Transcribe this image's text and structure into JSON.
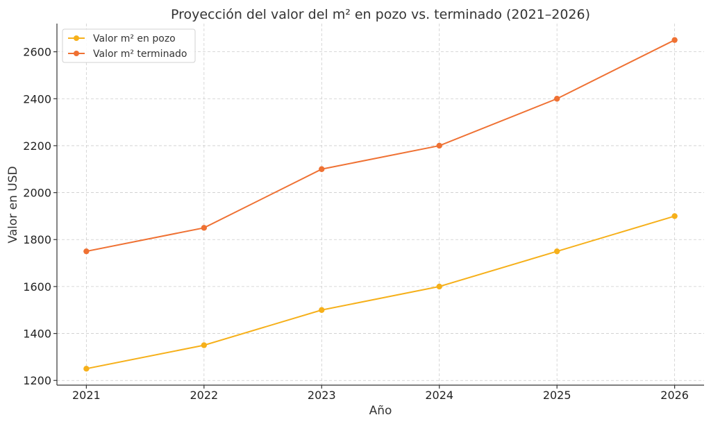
{
  "chart_data": {
    "type": "line",
    "title": "Proyección del valor del m² en pozo vs. terminado (2021–2026)",
    "xlabel": "Año",
    "ylabel": "Valor en USD",
    "x": [
      2021,
      2022,
      2023,
      2024,
      2025,
      2026
    ],
    "x_tick_labels": [
      "2021",
      "2022",
      "2023",
      "2024",
      "2025",
      "2026"
    ],
    "y_ticks": [
      1200,
      1400,
      1600,
      1800,
      2000,
      2200,
      2400,
      2600
    ],
    "y_tick_labels": [
      "1200",
      "1400",
      "1600",
      "1800",
      "2000",
      "2200",
      "2400",
      "2600"
    ],
    "ylim": [
      1180,
      2720
    ],
    "xlim": [
      2020.75,
      2026.25
    ],
    "grid": true,
    "legend_position": "top-left",
    "series": [
      {
        "name": "Valor m² en pozo",
        "color": "#f6b01a",
        "values": [
          1250,
          1350,
          1500,
          1600,
          1750,
          1900
        ]
      },
      {
        "name": "Valor m² terminado",
        "color": "#ef7133",
        "values": [
          1750,
          1850,
          2100,
          2200,
          2400,
          2650
        ]
      }
    ]
  }
}
